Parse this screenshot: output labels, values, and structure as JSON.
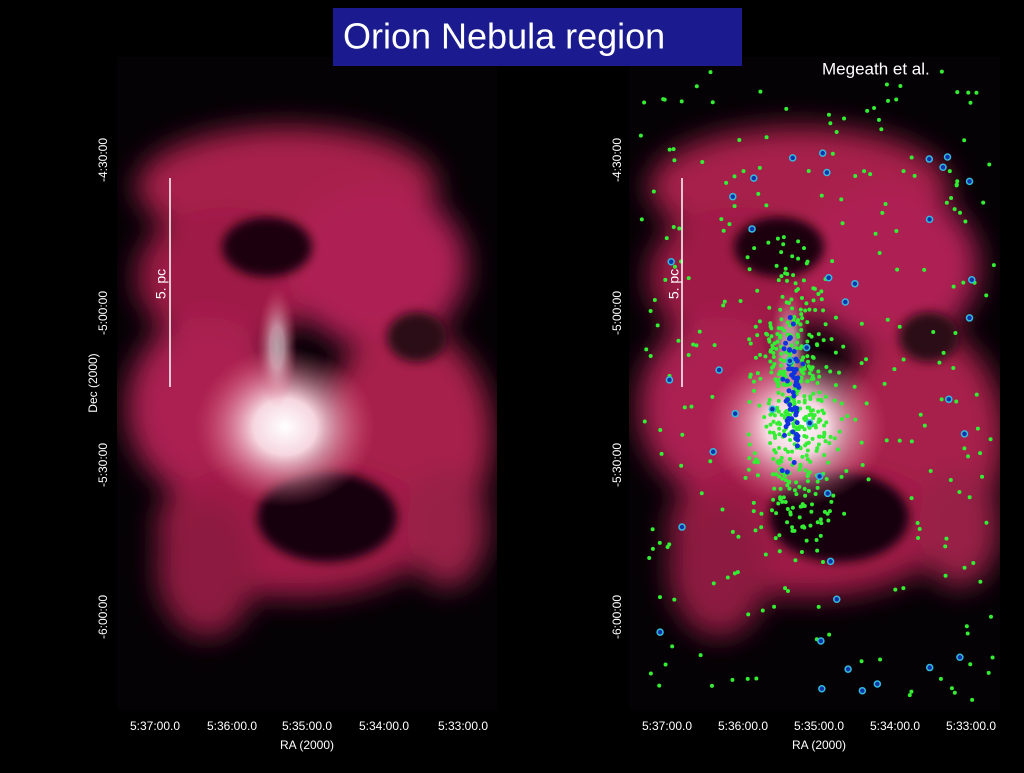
{
  "title": "Orion Nebula region",
  "credit": "Megeath et al.",
  "panels": [
    {
      "x_axis": {
        "label": "RA (2000)",
        "ticks": [
          "5:37:00.0",
          "5:36:00.0",
          "5:35:00.0",
          "5:34:00.0",
          "5:33:00.0"
        ]
      },
      "y_axis": {
        "label": "Dec (2000)",
        "ticks": [
          "-4:30:00",
          "-5:00:00",
          "-5:30:00",
          "-6:00:00"
        ]
      },
      "scale_bar": "5. pc"
    },
    {
      "x_axis": {
        "label": "RA (2000)",
        "ticks": [
          "5:37:00.0",
          "5:36:00.0",
          "5:35:00.0",
          "5:34:00.0",
          "5:33:00.0"
        ]
      },
      "y_axis": {
        "ticks": [
          "-4:30:00",
          "-5:00:00",
          "-5:30:00",
          "-6:00:00"
        ]
      },
      "scale_bar": "5. pc"
    }
  ]
}
